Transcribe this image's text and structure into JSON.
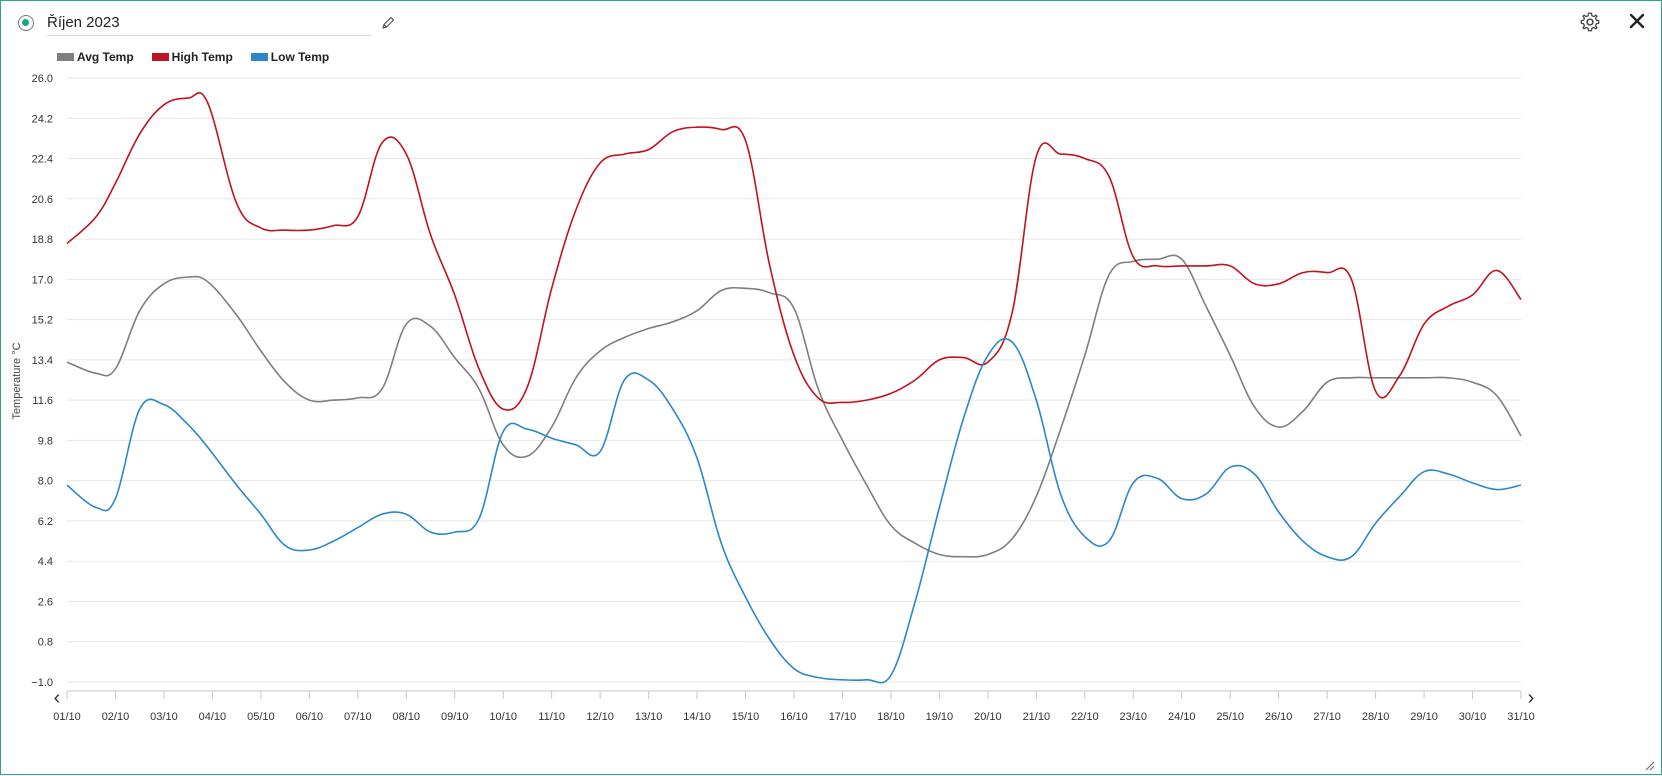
{
  "header": {
    "title": "Říjen 2023",
    "edit_icon": "pencil-icon",
    "settings_icon": "gear-icon",
    "close_icon": "close-icon"
  },
  "colors": {
    "frame_border": "#2aa58a",
    "status_dot": "#18a784",
    "avg": "#7f7f7f",
    "high": "#c0121f",
    "low": "#2b87c9",
    "grid": "#e6e6e6",
    "axis_text": "#333333"
  },
  "chart_data": {
    "type": "line",
    "title": "",
    "xlabel": "",
    "ylabel": "Temperature °C",
    "ylim": [
      -1.0,
      26.0
    ],
    "yticks": [
      "26.0",
      "24.2",
      "22.4",
      "20.6",
      "18.8",
      "17.0",
      "15.2",
      "13.4",
      "11.6",
      "9.8",
      "8.0",
      "6.2",
      "4.4",
      "2.6",
      "0.8",
      "−1.0"
    ],
    "yticks_values": [
      26.0,
      24.2,
      22.4,
      20.6,
      18.8,
      17.0,
      15.2,
      13.4,
      11.6,
      9.8,
      8.0,
      6.2,
      4.4,
      2.6,
      0.8,
      -1.0
    ],
    "categories": [
      "01/10",
      "02/10",
      "03/10",
      "04/10",
      "05/10",
      "06/10",
      "07/10",
      "08/10",
      "09/10",
      "10/10",
      "11/10",
      "12/10",
      "13/10",
      "14/10",
      "15/10",
      "16/10",
      "17/10",
      "18/10",
      "19/10",
      "20/10",
      "21/10",
      "22/10",
      "23/10",
      "24/10",
      "25/10",
      "26/10",
      "27/10",
      "28/10",
      "29/10",
      "30/10",
      "31/10"
    ],
    "grid": true,
    "legend_position": "top-left",
    "nav_arrows": [
      "‹",
      "›"
    ],
    "series": [
      {
        "name": "Avg Temp",
        "color": "#7f7f7f",
        "x": [
          0,
          0.6,
          1.0,
          1.5,
          2.0,
          2.5,
          2.9,
          3.5,
          4.0,
          4.5,
          5.0,
          5.5,
          6.0,
          6.5,
          7.0,
          7.5,
          8.0,
          8.5,
          9.0,
          9.5,
          10.0,
          10.5,
          11.0,
          11.5,
          12.0,
          12.5,
          13.0,
          13.5,
          14.0,
          14.5,
          15.0,
          15.5,
          16.0,
          16.5,
          17.0,
          17.5,
          18.0,
          18.5,
          19.0,
          19.5,
          20.0,
          20.5,
          21.0,
          21.5,
          22.0,
          22.5,
          23.0,
          23.5,
          24.0,
          24.5,
          25.0,
          25.5,
          26.0,
          26.5,
          27.0,
          27.5,
          28.0,
          28.5,
          29.0,
          29.5,
          30.0
        ],
        "values": [
          13.3,
          12.8,
          13.0,
          15.6,
          16.8,
          17.1,
          16.9,
          15.4,
          13.8,
          12.4,
          11.6,
          11.6,
          11.7,
          12.1,
          15.0,
          14.9,
          13.5,
          12.1,
          9.6,
          9.1,
          10.4,
          12.6,
          13.8,
          14.4,
          14.8,
          15.1,
          15.6,
          16.5,
          16.6,
          16.4,
          15.7,
          12.1,
          9.8,
          7.8,
          6.0,
          5.2,
          4.7,
          4.6,
          4.7,
          5.4,
          7.3,
          10.3,
          13.6,
          17.2,
          17.8,
          17.9,
          17.9,
          15.8,
          13.6,
          11.3,
          10.4,
          11.1,
          12.4,
          12.6,
          12.6,
          12.6,
          12.6,
          12.6,
          12.4,
          11.8,
          10.0
        ],
        "__note": ""
      }
    ]
  }
}
